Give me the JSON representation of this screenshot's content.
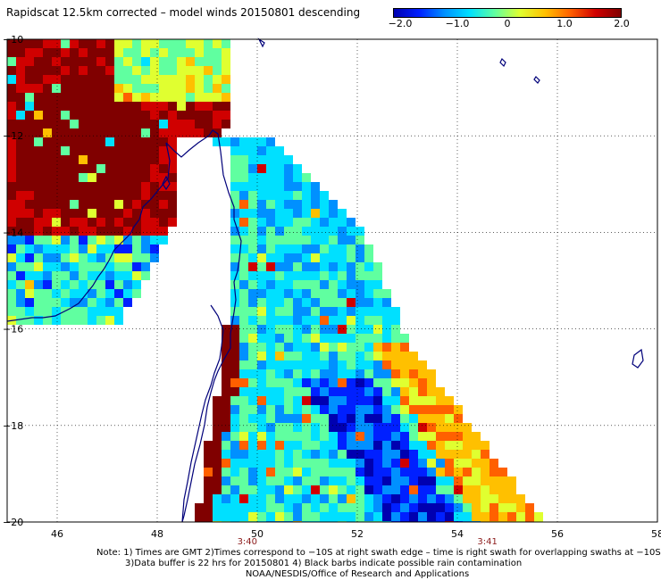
{
  "title": "Rapidscat 12.5km corrected – model winds 20150801 descending",
  "colorbar": {
    "tick_labels": [
      "−2.0",
      "−1.0",
      "0",
      "1.0",
      "2.0"
    ],
    "tick_values": [
      -2.0,
      -1.0,
      0,
      1.0,
      2.0
    ],
    "min": -2.0,
    "max": 2.0,
    "colors": [
      "#0000b0",
      "#0020ff",
      "#0090ff",
      "#00e0ff",
      "#60ffa0",
      "#e0ff30",
      "#ffc000",
      "#ff6000",
      "#d00000",
      "#800000"
    ]
  },
  "map": {
    "lon_range": [
      45,
      58
    ],
    "lat_range": [
      -20,
      -10
    ],
    "x_ticks": [
      "46",
      "48",
      "50",
      "52",
      "54",
      "56",
      "58"
    ],
    "y_ticks": [
      "10",
      "12",
      "14",
      "16",
      "18",
      "20"
    ],
    "time_labels": [
      {
        "text": "3:40",
        "lon": 49.8
      },
      {
        "text": "3:41",
        "lon": 54.6
      }
    ],
    "gridlines": "dotted",
    "coastline_color": "#00007a"
  },
  "notes": {
    "line1": "Note: 1) Times are GMT 2)Times correspond to −10S at right swath edge – time is right swath for overlapping swaths at −10S",
    "line2": "3)Data buffer is 22 hrs for 20150801 4) Black barbs indicate possible rain contamination",
    "line3": "NOAA/NESDIS/Office of Research and Applications"
  }
}
